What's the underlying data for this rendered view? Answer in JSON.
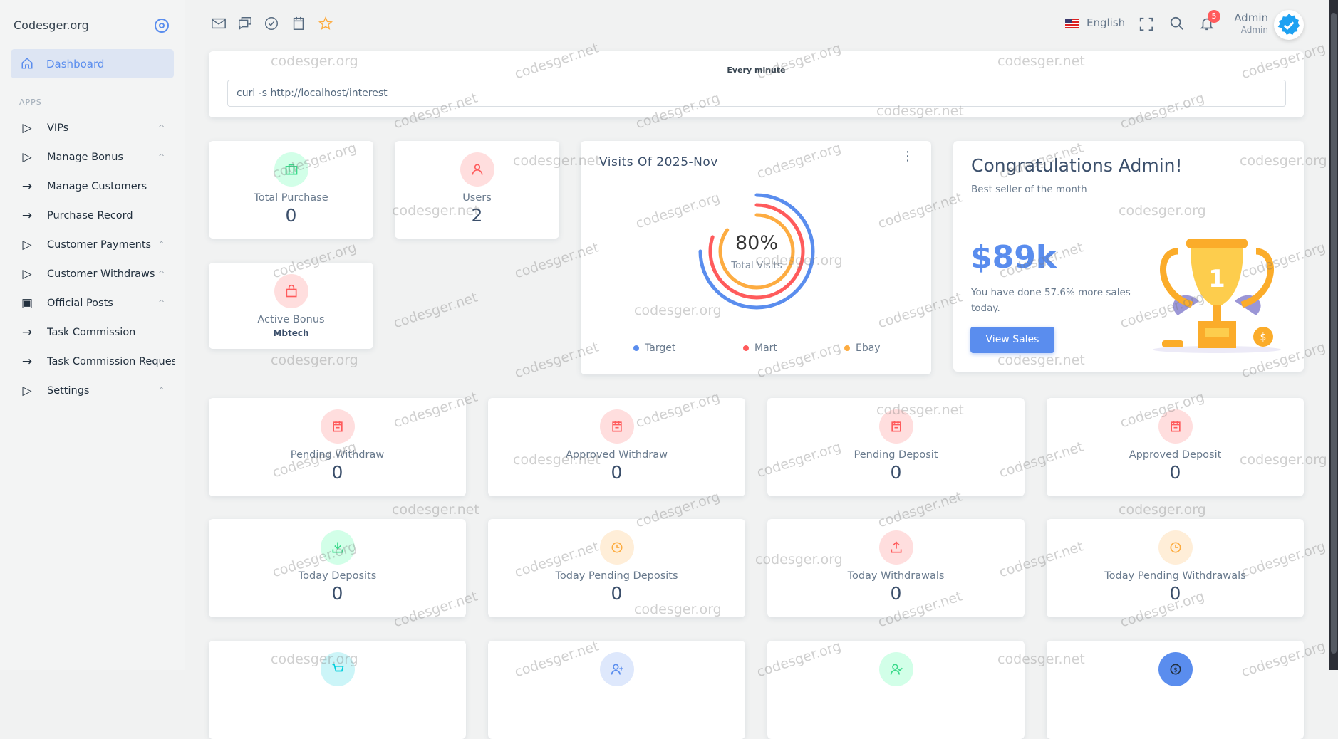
{
  "sidebar": {
    "brand": "Codesger.org",
    "active": "Dashboard",
    "section": "APPS",
    "items": [
      {
        "label": "VIPs",
        "icon": "play-outline-icon",
        "expandable": true
      },
      {
        "label": "Manage Bonus",
        "icon": "play-outline-icon",
        "expandable": true
      },
      {
        "label": "Manage Customers",
        "icon": "arrow-right-icon",
        "expandable": false
      },
      {
        "label": "Purchase Record",
        "icon": "arrow-right-icon",
        "expandable": false
      },
      {
        "label": "Customer Payments",
        "icon": "play-outline-icon",
        "expandable": true
      },
      {
        "label": "Customer Withdraws",
        "icon": "play-outline-icon",
        "expandable": true
      },
      {
        "label": "Official Posts",
        "icon": "newspaper-icon",
        "expandable": true
      },
      {
        "label": "Task Commission",
        "icon": "arrow-right-icon",
        "expandable": false
      },
      {
        "label": "Task Commission Request",
        "icon": "arrow-right-icon",
        "expandable": false
      },
      {
        "label": "Settings",
        "icon": "play-outline-icon",
        "expandable": true
      }
    ]
  },
  "topbar": {
    "language": "English",
    "notifications": "5",
    "user_name": "Admin",
    "user_role": "Admin"
  },
  "cron": {
    "label": "Every minute",
    "command": "curl -s http://localhost/interest"
  },
  "top_stats": {
    "total_purchase": {
      "label": "Total Purchase",
      "value": "0"
    },
    "users": {
      "label": "Users",
      "value": "2"
    },
    "active_bonus": {
      "label": "Active Bonus",
      "value": "Mbtech"
    }
  },
  "visits": {
    "title": "Visits Of 2025-Nov",
    "center_value": "80%",
    "center_label": "Total Visits",
    "chart_data": {
      "type": "radialBar",
      "series": [
        {
          "name": "Target",
          "value": 75,
          "color": "#5a8dee"
        },
        {
          "name": "Mart",
          "value": 80,
          "color": "#ff5b5c"
        },
        {
          "name": "Ebay",
          "value": 85,
          "color": "#fdac41"
        }
      ],
      "legend": "bottom"
    }
  },
  "congrats": {
    "title": "Congratulations Admin!",
    "subtitle": "Best seller of the month",
    "amount": "$89k",
    "note": "You have done 57.6% more sales today.",
    "button": "View Sales",
    "trophy_number": "1"
  },
  "stats": [
    {
      "label": "Pending Withdraw",
      "value": "0",
      "icon": "calendar-icon",
      "color": "#ff5b5c",
      "bg": "#ffdede"
    },
    {
      "label": "Approved Withdraw",
      "value": "0",
      "icon": "calendar-icon",
      "color": "#ff5b5c",
      "bg": "#ffdede"
    },
    {
      "label": "Pending Deposit",
      "value": "0",
      "icon": "calendar-icon",
      "color": "#ff5b5c",
      "bg": "#ffdede"
    },
    {
      "label": "Approved Deposit",
      "value": "0",
      "icon": "calendar-icon",
      "color": "#ff5b5c",
      "bg": "#ffdede"
    },
    {
      "label": "Today Deposits",
      "value": "0",
      "icon": "download-icon",
      "color": "#39da8a",
      "bg": "#d2ffe8"
    },
    {
      "label": "Today Pending Deposits",
      "value": "0",
      "icon": "clock-icon",
      "color": "#fdac41",
      "bg": "#ffeed8"
    },
    {
      "label": "Today Withdrawals",
      "value": "0",
      "icon": "upload-icon",
      "color": "#ff5b5c",
      "bg": "#ffdede"
    },
    {
      "label": "Today Pending Withdrawals",
      "value": "0",
      "icon": "clock-icon",
      "color": "#fdac41",
      "bg": "#ffeed8"
    },
    {
      "label": "",
      "value": "",
      "icon": "cart-icon",
      "color": "#00cfdd",
      "bg": "#ccf5f8"
    },
    {
      "label": "",
      "value": "",
      "icon": "user-plus-icon",
      "color": "#5a8dee",
      "bg": "#dee8fc"
    },
    {
      "label": "",
      "value": "",
      "icon": "user-check-icon",
      "color": "#39da8a",
      "bg": "#d2ffe8"
    },
    {
      "label": "",
      "value": "",
      "icon": "dollar-icon",
      "color": "#22303e",
      "bg": "#5a8dee"
    }
  ],
  "watermarks": [
    "codesger.org",
    "codesger.net"
  ]
}
